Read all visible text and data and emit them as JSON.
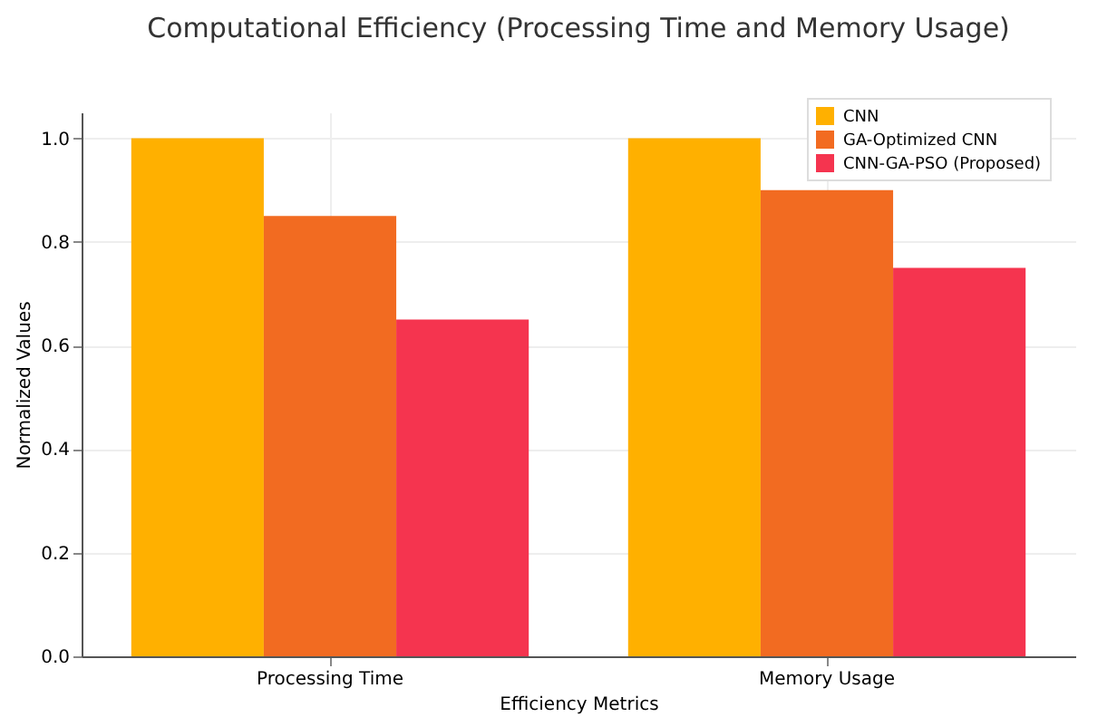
{
  "chart_data": {
    "type": "bar",
    "title": "Computational Efficiency (Processing Time and Memory Usage)",
    "xlabel": "Efficiency Metrics",
    "ylabel": "Normalized Values",
    "categories": [
      "Processing Time",
      "Memory Usage"
    ],
    "series": [
      {
        "name": "CNN",
        "color": "#ffb000",
        "values": [
          1.0,
          1.0
        ]
      },
      {
        "name": "GA-Optimized CNN",
        "color": "#f26b21",
        "values": [
          0.85,
          0.9
        ]
      },
      {
        "name": "CNN-GA-PSO (Proposed)",
        "color": "#f5344f",
        "values": [
          0.65,
          0.75
        ]
      }
    ],
    "ylim": [
      0,
      1.05
    ],
    "yticks": [
      {
        "value": 0,
        "label": "0.0"
      },
      0.2,
      0.4,
      0.6,
      0.8,
      {
        "value": 1,
        "label": "1.0"
      }
    ],
    "grid": true,
    "legend": "top right"
  }
}
